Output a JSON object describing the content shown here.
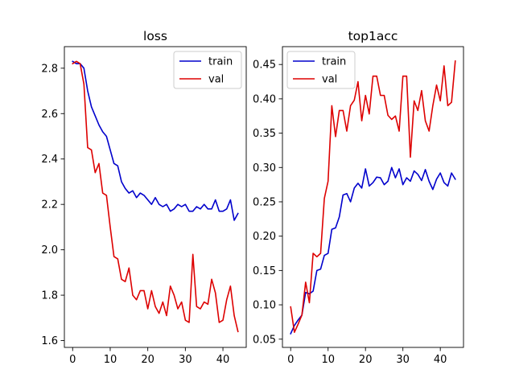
{
  "chart_data": [
    {
      "type": "line",
      "title": "loss",
      "xlabel": "",
      "ylabel": "",
      "xlim": [
        -2.2,
        46.2
      ],
      "ylim": [
        1.57,
        2.895
      ],
      "xticks": [
        0,
        10,
        20,
        30,
        40
      ],
      "yticks": [
        1.6,
        1.8,
        2.0,
        2.2,
        2.4,
        2.6,
        2.8
      ],
      "ytick_labels": [
        "1.6",
        "1.8",
        "2.0",
        "2.2",
        "2.4",
        "2.6",
        "2.8"
      ],
      "xtick_labels": [
        "0",
        "10",
        "20",
        "30",
        "40"
      ],
      "grid": false,
      "legend_position": "top-right",
      "x": [
        0,
        1,
        2,
        3,
        4,
        5,
        6,
        7,
        8,
        9,
        10,
        11,
        12,
        13,
        14,
        15,
        16,
        17,
        18,
        19,
        20,
        21,
        22,
        23,
        24,
        25,
        26,
        27,
        28,
        29,
        30,
        31,
        32,
        33,
        34,
        35,
        36,
        37,
        38,
        39,
        40,
        41,
        42,
        43,
        44
      ],
      "series": [
        {
          "name": "train",
          "color": "#0000cc",
          "values": [
            2.83,
            2.82,
            2.82,
            2.8,
            2.7,
            2.63,
            2.59,
            2.55,
            2.52,
            2.5,
            2.44,
            2.38,
            2.37,
            2.3,
            2.27,
            2.25,
            2.26,
            2.23,
            2.25,
            2.24,
            2.22,
            2.2,
            2.23,
            2.2,
            2.19,
            2.2,
            2.17,
            2.18,
            2.2,
            2.19,
            2.2,
            2.17,
            2.17,
            2.19,
            2.18,
            2.2,
            2.18,
            2.18,
            2.22,
            2.17,
            2.17,
            2.18,
            2.22,
            2.13,
            2.16
          ]
        },
        {
          "name": "val",
          "color": "#dd0000",
          "values": [
            2.82,
            2.83,
            2.82,
            2.73,
            2.45,
            2.44,
            2.34,
            2.38,
            2.25,
            2.24,
            2.1,
            1.97,
            1.96,
            1.87,
            1.86,
            1.92,
            1.8,
            1.78,
            1.82,
            1.82,
            1.74,
            1.82,
            1.75,
            1.72,
            1.77,
            1.71,
            1.84,
            1.8,
            1.74,
            1.77,
            1.69,
            1.68,
            1.98,
            1.75,
            1.74,
            1.77,
            1.76,
            1.87,
            1.81,
            1.68,
            1.69,
            1.78,
            1.84,
            1.71,
            1.64
          ]
        }
      ]
    },
    {
      "type": "line",
      "title": "top1acc",
      "xlabel": "",
      "ylabel": "",
      "xlim": [
        -2.2,
        46.2
      ],
      "ylim": [
        0.038,
        0.476
      ],
      "xticks": [
        0,
        10,
        20,
        30,
        40
      ],
      "yticks": [
        0.05,
        0.1,
        0.15,
        0.2,
        0.25,
        0.3,
        0.35,
        0.4,
        0.45
      ],
      "ytick_labels": [
        "0.05",
        "0.10",
        "0.15",
        "0.20",
        "0.25",
        "0.30",
        "0.35",
        "0.40",
        "0.45"
      ],
      "xtick_labels": [
        "0",
        "10",
        "20",
        "30",
        "40"
      ],
      "grid": false,
      "legend_position": "top-left",
      "x": [
        0,
        1,
        2,
        3,
        4,
        5,
        6,
        7,
        8,
        9,
        10,
        11,
        12,
        13,
        14,
        15,
        16,
        17,
        18,
        19,
        20,
        21,
        22,
        23,
        24,
        25,
        26,
        27,
        28,
        29,
        30,
        31,
        32,
        33,
        34,
        35,
        36,
        37,
        38,
        39,
        40,
        41,
        42,
        43,
        44
      ],
      "series": [
        {
          "name": "train",
          "color": "#0000cc",
          "values": [
            0.058,
            0.07,
            0.078,
            0.085,
            0.118,
            0.116,
            0.12,
            0.15,
            0.152,
            0.172,
            0.175,
            0.21,
            0.212,
            0.228,
            0.26,
            0.262,
            0.25,
            0.27,
            0.277,
            0.27,
            0.298,
            0.273,
            0.278,
            0.286,
            0.285,
            0.275,
            0.28,
            0.3,
            0.285,
            0.298,
            0.275,
            0.285,
            0.28,
            0.295,
            0.29,
            0.281,
            0.297,
            0.28,
            0.268,
            0.283,
            0.292,
            0.278,
            0.273,
            0.292,
            0.283
          ]
        },
        {
          "name": "val",
          "color": "#dd0000",
          "values": [
            0.097,
            0.06,
            0.072,
            0.085,
            0.133,
            0.103,
            0.175,
            0.17,
            0.175,
            0.255,
            0.28,
            0.39,
            0.345,
            0.383,
            0.383,
            0.353,
            0.39,
            0.398,
            0.425,
            0.368,
            0.405,
            0.378,
            0.433,
            0.433,
            0.405,
            0.405,
            0.376,
            0.37,
            0.375,
            0.353,
            0.433,
            0.433,
            0.315,
            0.397,
            0.383,
            0.412,
            0.368,
            0.353,
            0.39,
            0.42,
            0.397,
            0.448,
            0.39,
            0.395,
            0.455
          ]
        }
      ]
    }
  ]
}
